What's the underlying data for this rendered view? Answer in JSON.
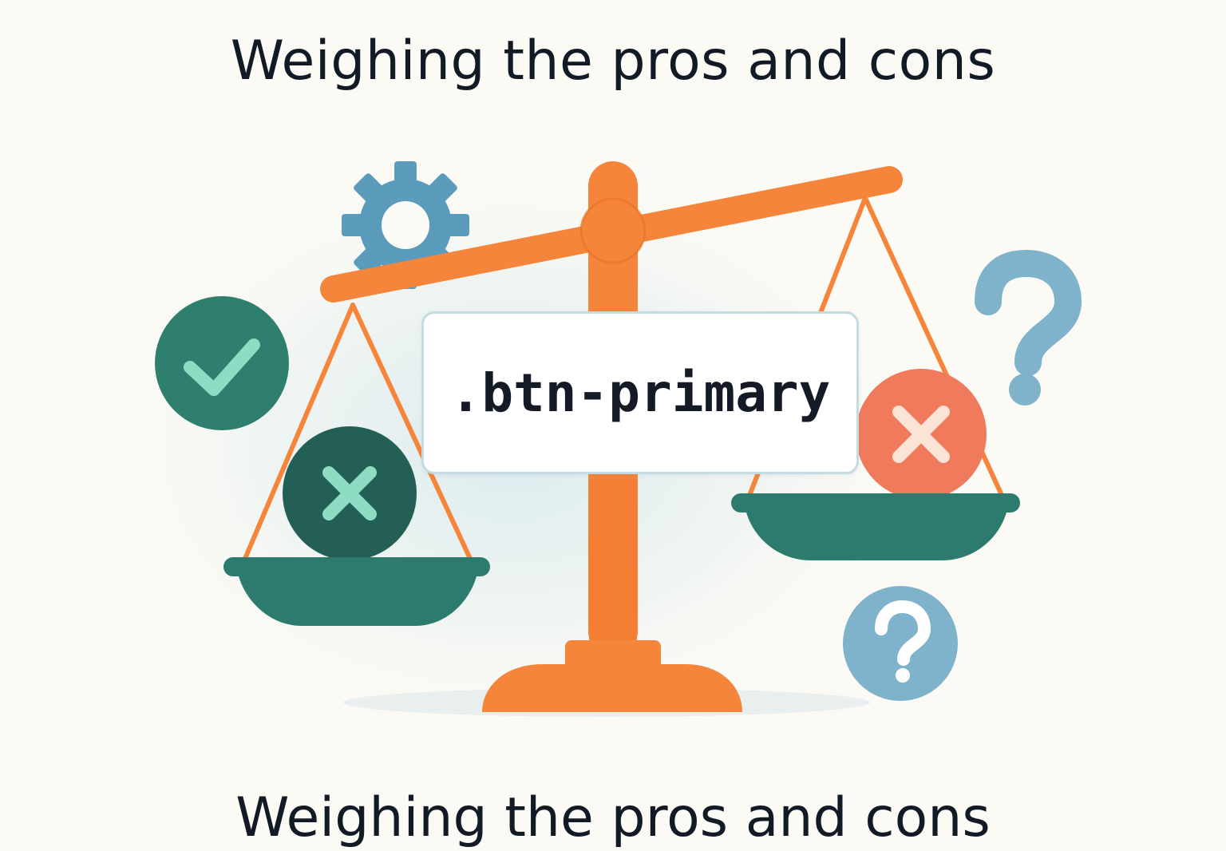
{
  "heading_top": "Weighing the pros and cons",
  "heading_bottom": "Weighing the pros and cons",
  "code_label": ".btn-primary",
  "icons": {
    "gear": "gear-icon",
    "check": "check-circle-icon",
    "left_cross": "cross-circle-icon",
    "right_cross": "cross-circle-icon",
    "question_large": "question-mark-icon",
    "question_circle": "question-circle-icon",
    "scale": "balance-scale-icon"
  },
  "colors": {
    "background": "#fbfaf5",
    "scale_orange": "#f5853a",
    "pan_teal": "#2c7b6e",
    "check_green": "#2f7f6f",
    "cross_dark": "#245f56",
    "cross_red": "#f07a5c",
    "question_blue": "#7fb3cb",
    "gear_blue": "#5b9cbc",
    "text": "#121a26"
  }
}
